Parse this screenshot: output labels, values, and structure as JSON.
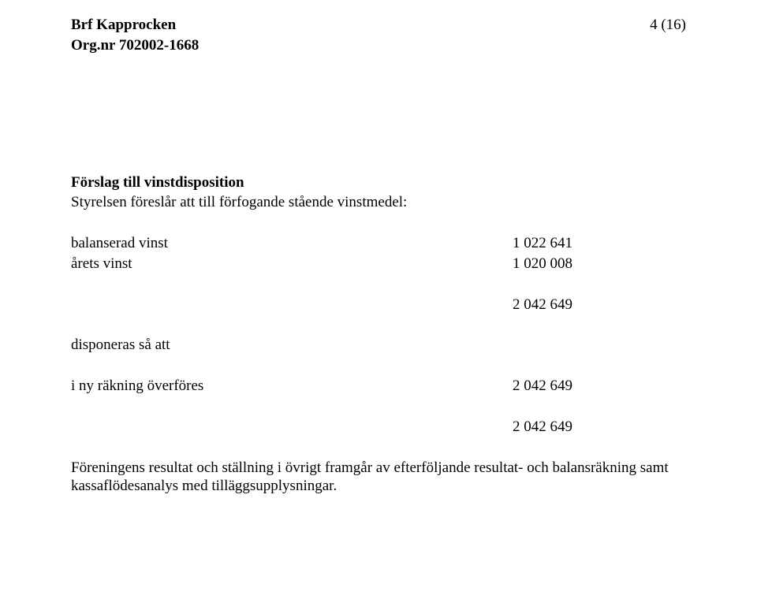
{
  "header": {
    "org_name": "Brf Kapprocken",
    "org_nr_label": "Org.nr 702002-1668",
    "page_indicator": "4 (16)"
  },
  "proposal": {
    "title": "Förslag till vinstdisposition",
    "subtitle": "Styrelsen föreslår att till förfogande stående vinstmedel:",
    "rows": [
      {
        "label": "balanserad vinst",
        "value": "1 022 641"
      },
      {
        "label": "årets vinst",
        "value": "1 020 008"
      }
    ],
    "subtotal": "2 042 649",
    "disponeras_label": "disponeras så att",
    "transfer": {
      "label": "i ny räkning överföres",
      "value": "2 042 649"
    },
    "total": "2 042 649",
    "closing_paragraph": "Föreningens resultat och ställning i övrigt framgår av efterföljande resultat- och balansräkning samt kassaflödesanalys med tilläggsupplysningar."
  },
  "style": {
    "font_family": "Times New Roman",
    "base_fontsize_pt": 14,
    "text_color": "#000000",
    "background_color": "#ffffff",
    "bold_weight": 700,
    "normal_weight": 400
  }
}
